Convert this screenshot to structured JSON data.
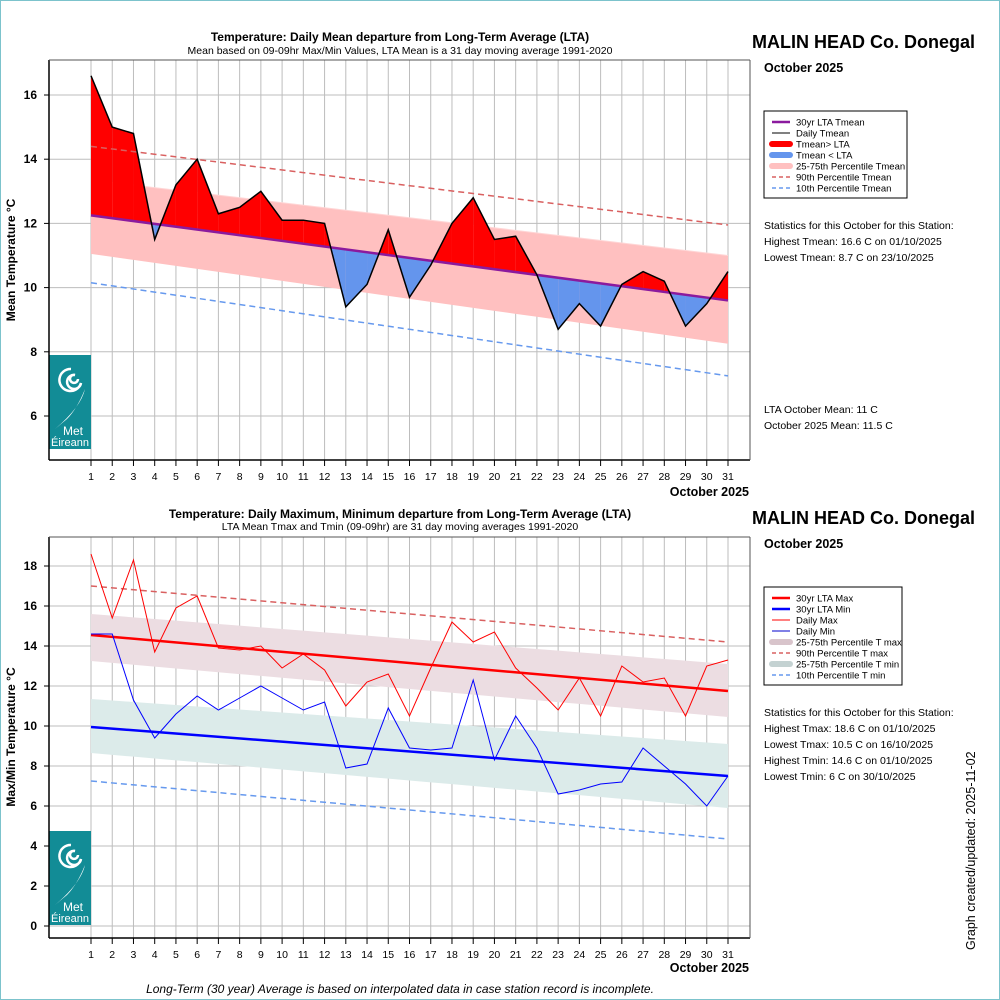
{
  "chart_data": [
    {
      "type": "area",
      "title": "Temperature: Daily Mean departure from Long-Term Average (LTA)",
      "subtitle": "Mean based on 09-09hr Max/Min Values, LTA Mean is a 31 day moving average 1991-2020",
      "ylabel": "Mean Temperature °C",
      "xlabel": "October 2025",
      "ylim": [
        4.6,
        17.1
      ],
      "yticks": [
        6,
        8,
        10,
        12,
        14,
        16
      ],
      "x": [
        1,
        2,
        3,
        4,
        5,
        6,
        7,
        8,
        9,
        10,
        11,
        12,
        13,
        14,
        15,
        16,
        17,
        18,
        19,
        20,
        21,
        22,
        23,
        24,
        25,
        26,
        27,
        28,
        29,
        30,
        31
      ],
      "grid": true,
      "legend_position": "right",
      "series": [
        {
          "name": "Daily Tmean",
          "color": "#000000",
          "values": [
            16.6,
            15.0,
            14.8,
            11.5,
            13.2,
            14.0,
            12.3,
            12.5,
            13.0,
            12.1,
            12.1,
            12.0,
            9.4,
            10.1,
            11.8,
            9.7,
            10.7,
            12.0,
            12.8,
            11.5,
            11.6,
            10.4,
            8.7,
            9.5,
            8.8,
            10.1,
            10.5,
            10.2,
            8.8,
            9.5,
            10.5
          ]
        },
        {
          "name": "30yr LTA Tmean",
          "color": "#8b1a9e",
          "start": 12.25,
          "end": 9.6
        },
        {
          "name": "90th Percentile Tmean",
          "color": "#d96060",
          "start": 14.4,
          "end": 11.95
        },
        {
          "name": "10th Percentile Tmean",
          "color": "#6699ee",
          "start": 10.15,
          "end": 7.25
        },
        {
          "name": "25-75th Percentile Tmean",
          "color": "#ffc0c0",
          "upper_start": 13.35,
          "upper_end": 11.0,
          "lower_start": 11.05,
          "lower_end": 8.25
        }
      ],
      "fills": {
        "above": "#ff0000",
        "below": "#6495ed"
      },
      "legend": [
        {
          "label": "30yr LTA Tmean",
          "color": "#8b1a9e",
          "style": "line"
        },
        {
          "label": "Daily Tmean",
          "color": "#000000",
          "style": "thin"
        },
        {
          "label": "Tmean> LTA",
          "color": "#ff0000",
          "style": "thick"
        },
        {
          "label": "Tmean < LTA",
          "color": "#6495ed",
          "style": "thick"
        },
        {
          "label": "25-75th Percentile Tmean",
          "color": "#ffc0c0",
          "style": "thick"
        },
        {
          "label": "90th Percentile Tmean",
          "color": "#d96060",
          "style": "dash"
        },
        {
          "label": "10th Percentile Tmean",
          "color": "#6699ee",
          "style": "dash"
        }
      ]
    },
    {
      "type": "line",
      "title": "Temperature: Daily Maximum, Minimum departure from Long-Term Average (LTA)",
      "subtitle": "LTA Mean Tmax and Tmin (09-09hr) are 31 day moving averages 1991-2020",
      "ylabel": "Max/Min Temperature °C",
      "xlabel": "October 2025",
      "ylim": [
        -0.6,
        19.5
      ],
      "yticks": [
        0,
        2,
        4,
        6,
        8,
        10,
        12,
        14,
        16,
        18
      ],
      "x": [
        1,
        2,
        3,
        4,
        5,
        6,
        7,
        8,
        9,
        10,
        11,
        12,
        13,
        14,
        15,
        16,
        17,
        18,
        19,
        20,
        21,
        22,
        23,
        24,
        25,
        26,
        27,
        28,
        29,
        30,
        31
      ],
      "grid": true,
      "legend_position": "right",
      "series": [
        {
          "name": "Daily Max",
          "color": "#ff0000",
          "values": [
            18.6,
            15.4,
            18.3,
            13.7,
            15.9,
            16.5,
            13.9,
            13.8,
            14.0,
            12.9,
            13.6,
            12.8,
            11.0,
            12.2,
            12.6,
            10.5,
            12.9,
            15.2,
            14.2,
            14.7,
            12.9,
            11.9,
            10.8,
            12.4,
            10.5,
            13.0,
            12.2,
            12.4,
            10.5,
            13.0,
            13.3
          ]
        },
        {
          "name": "Daily Min",
          "color": "#0000ff",
          "values": [
            14.6,
            14.6,
            11.3,
            9.4,
            10.6,
            11.5,
            10.8,
            11.4,
            12.0,
            11.4,
            10.8,
            11.2,
            7.9,
            8.1,
            10.9,
            8.9,
            8.8,
            8.9,
            12.3,
            8.3,
            10.5,
            8.9,
            6.6,
            6.8,
            7.1,
            7.2,
            8.9,
            8.0,
            7.1,
            6.0,
            7.5
          ]
        },
        {
          "name": "30yr LTA Max",
          "color": "#ff0000",
          "start": 14.55,
          "end": 11.75
        },
        {
          "name": "30yr LTA Min",
          "color": "#0000ff",
          "start": 9.95,
          "end": 7.5
        },
        {
          "name": "90th Percentile T max",
          "color": "#d96060",
          "start": 17.0,
          "end": 14.2
        },
        {
          "name": "10th Percentile T min",
          "color": "#6699ee",
          "start": 7.25,
          "end": 4.35
        },
        {
          "name": "25-75th Percentile T max",
          "color": "#ecdde2",
          "upper_start": 15.6,
          "upper_end": 13.1,
          "lower_start": 13.25,
          "lower_end": 10.45
        },
        {
          "name": "25-75th Percentile T min",
          "color": "#dcebea",
          "upper_start": 11.35,
          "upper_end": 9.1,
          "lower_start": 8.65,
          "lower_end": 5.9
        }
      ],
      "legend": [
        {
          "label": "30yr LTA Max",
          "color": "#ff0000",
          "style": "line"
        },
        {
          "label": "30yr LTA Min",
          "color": "#0000ff",
          "style": "line"
        },
        {
          "label": "Daily Max",
          "color": "#ff0000",
          "style": "thin"
        },
        {
          "label": "Daily Min",
          "color": "#0000cc",
          "style": "thin"
        },
        {
          "label": "25-75th Percentile T max",
          "color": "#d8c4cb",
          "style": "thick"
        },
        {
          "label": "90th Percentile T max",
          "color": "#d96060",
          "style": "dash"
        },
        {
          "label": "25-75th Percentile T min",
          "color": "#c4d2d2",
          "style": "thick"
        },
        {
          "label": "10th Percentile T min",
          "color": "#6699ee",
          "style": "dash"
        }
      ]
    }
  ],
  "station": "MALIN HEAD Co. Donegal",
  "month_label": "October 2025",
  "top_stats": {
    "heading": "Statistics for this October for this Station:",
    "lines": [
      "Highest Tmean: 16.6 C on 01/10/2025",
      "Lowest Tmean: 8.7 C on 23/10/2025"
    ],
    "lta_mean": "LTA October Mean: 11 C",
    "month_mean": "October 2025 Mean: 11.5 C"
  },
  "bottom_stats": {
    "heading": "Statistics for this October for this Station:",
    "lines": [
      "Highest Tmax: 18.6 C on 01/10/2025",
      "Lowest Tmax: 10.5 C on 16/10/2025",
      "Highest Tmin: 14.6 C on 01/10/2025",
      "Lowest Tmin: 6 C on 30/10/2025"
    ]
  },
  "logo": {
    "line1": "Met",
    "line2": "Éireann",
    "color": "#128c96"
  },
  "footer": "Long-Term (30 year) Average is based on interpolated data in case station record is incomplete.",
  "updated": "Graph created/updated:  2025-11-02"
}
